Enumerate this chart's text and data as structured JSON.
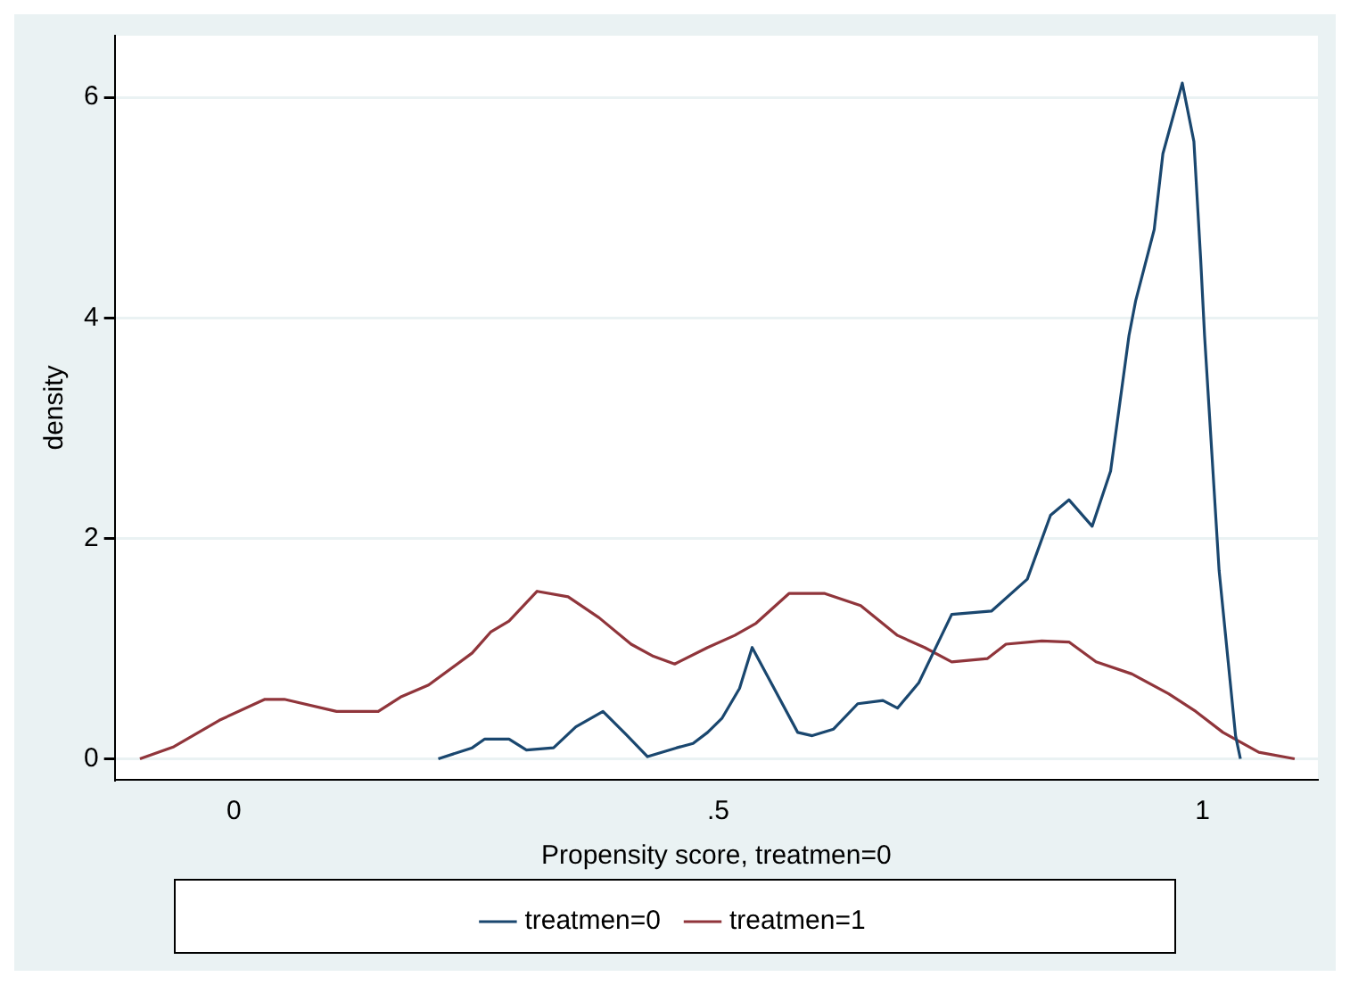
{
  "chart_data": {
    "type": "line",
    "xlabel": "Propensity score, treatmen=0",
    "ylabel": "density",
    "xlim": [
      -0.123,
      1.119
    ],
    "ylim": [
      -0.19,
      6.56
    ],
    "xticks": [
      0,
      {
        "value": 0.5,
        "label": ".5"
      },
      1
    ],
    "yticks": [
      0,
      2,
      4,
      6
    ],
    "grid": "y",
    "legend": "bottom",
    "marker": "none",
    "line_style": "solid",
    "series": [
      {
        "name": "treatmen=0",
        "color": "#1a476f",
        "x": [
          0.211,
          0.246,
          0.259,
          0.284,
          0.302,
          0.33,
          0.353,
          0.381,
          0.405,
          0.427,
          0.457,
          0.474,
          0.489,
          0.504,
          0.522,
          0.535,
          0.582,
          0.597,
          0.619,
          0.644,
          0.67,
          0.685,
          0.707,
          0.741,
          0.782,
          0.819,
          0.843,
          0.862,
          0.886,
          0.905,
          0.924,
          0.931,
          0.95,
          0.959,
          0.979,
          0.991,
          0.998,
          1.002,
          1.017,
          1.034,
          1.039
        ],
        "values": [
          0,
          0.1,
          0.18,
          0.18,
          0.08,
          0.1,
          0.29,
          0.43,
          0.22,
          0.02,
          0.1,
          0.14,
          0.24,
          0.37,
          0.64,
          1.01,
          0.24,
          0.21,
          0.27,
          0.5,
          0.53,
          0.46,
          0.69,
          1.31,
          1.34,
          1.63,
          2.21,
          2.35,
          2.11,
          2.61,
          3.84,
          4.16,
          4.8,
          5.49,
          6.13,
          5.6,
          4.53,
          3.84,
          1.71,
          0.21,
          0
        ]
      },
      {
        "name": "treatmen=1",
        "color": "#90353b",
        "x": [
          -0.097,
          -0.062,
          -0.015,
          0.032,
          0.052,
          0.106,
          0.149,
          0.172,
          0.201,
          0.246,
          0.265,
          0.284,
          0.313,
          0.345,
          0.377,
          0.41,
          0.433,
          0.455,
          0.489,
          0.517,
          0.539,
          0.573,
          0.61,
          0.647,
          0.685,
          0.713,
          0.741,
          0.778,
          0.797,
          0.834,
          0.862,
          0.89,
          0.927,
          0.965,
          0.993,
          1.021,
          1.058,
          1.095
        ],
        "values": [
          0,
          0.11,
          0.35,
          0.54,
          0.54,
          0.43,
          0.43,
          0.56,
          0.67,
          0.96,
          1.15,
          1.25,
          1.52,
          1.47,
          1.28,
          1.04,
          0.93,
          0.86,
          1.01,
          1.12,
          1.23,
          1.5,
          1.5,
          1.39,
          1.12,
          1.01,
          0.88,
          0.91,
          1.04,
          1.07,
          1.06,
          0.88,
          0.77,
          0.59,
          0.43,
          0.24,
          0.06,
          0
        ]
      }
    ]
  }
}
